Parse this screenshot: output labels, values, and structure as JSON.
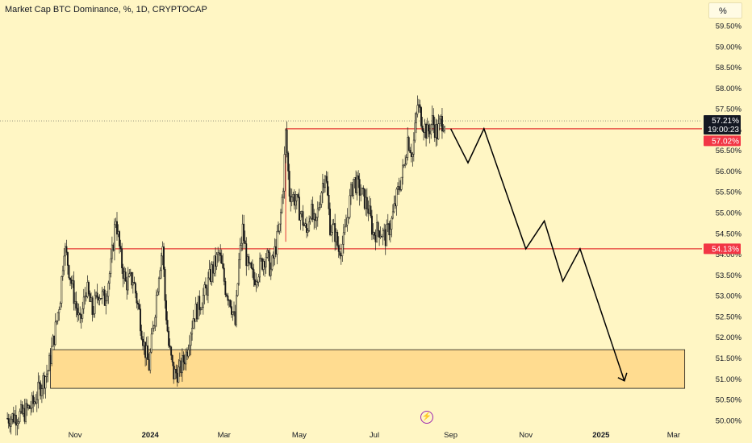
{
  "header": {
    "title": "Market Cap BTC Dominance, %, 1D, CRYPTOCAP",
    "unit_button": "%"
  },
  "colors": {
    "background": "#fff6c4",
    "candle": "#1a1a1a",
    "resistance": "#e53935",
    "zone_fill": "#ffd37f",
    "zone_border": "#1a1a1a",
    "current_label_bg": "#131722",
    "red_label_bg": "#f23645"
  },
  "labels": {
    "current_price": "57.21%",
    "countdown": "19:00:23",
    "upper_level": "57.02%",
    "lower_level": "54.13%"
  },
  "icons": {
    "bolt": "lightning-icon"
  },
  "chart_data": {
    "type": "candlestick",
    "title": "Market Cap BTC Dominance, %, 1D, CRYPTOCAP",
    "ylim": [
      49.88,
      60.12
    ],
    "y_ticks": [
      "50.00%",
      "50.50%",
      "51.00%",
      "51.50%",
      "52.00%",
      "52.50%",
      "53.00%",
      "53.50%",
      "54.00%",
      "54.50%",
      "55.00%",
      "55.50%",
      "56.00%",
      "56.50%",
      "57.00%",
      "57.50%",
      "58.00%",
      "58.50%",
      "59.00%",
      "59.50%"
    ],
    "y_tick_values": [
      50.0,
      50.5,
      51.0,
      51.5,
      52.0,
      52.5,
      53.0,
      53.5,
      54.0,
      54.5,
      55.0,
      55.5,
      56.0,
      56.5,
      57.0,
      57.5,
      58.0,
      58.5,
      59.0,
      59.5
    ],
    "x_ticks": [
      {
        "label": "Nov",
        "date": "2023-11-01",
        "bold": false
      },
      {
        "label": "2024",
        "date": "2024-01-01",
        "bold": true
      },
      {
        "label": "Mar",
        "date": "2024-03-01",
        "bold": false
      },
      {
        "label": "May",
        "date": "2024-05-01",
        "bold": false
      },
      {
        "label": "Jul",
        "date": "2024-07-01",
        "bold": false
      },
      {
        "label": "Sep",
        "date": "2024-09-01",
        "bold": false
      },
      {
        "label": "Nov",
        "date": "2024-11-01",
        "bold": false
      },
      {
        "label": "2025",
        "date": "2025-01-01",
        "bold": true
      },
      {
        "label": "Mar",
        "date": "2025-03-01",
        "bold": false
      }
    ],
    "price_path": [
      [
        "2023-09-07",
        50.05
      ],
      [
        "2023-09-20",
        50.15
      ],
      [
        "2023-09-28",
        50.4
      ],
      [
        "2023-10-05",
        50.9
      ],
      [
        "2023-10-10",
        51.2
      ],
      [
        "2023-10-16",
        52.2
      ],
      [
        "2023-10-20",
        53.0
      ],
      [
        "2023-10-23",
        54.2
      ],
      [
        "2023-10-26",
        53.8
      ],
      [
        "2023-10-31",
        53.0
      ],
      [
        "2023-11-05",
        52.3
      ],
      [
        "2023-11-10",
        53.2
      ],
      [
        "2023-11-15",
        52.6
      ],
      [
        "2023-11-20",
        53.1
      ],
      [
        "2023-11-25",
        52.9
      ],
      [
        "2023-11-30",
        53.7
      ],
      [
        "2023-12-04",
        54.9
      ],
      [
        "2023-12-08",
        53.9
      ],
      [
        "2023-12-12",
        53.3
      ],
      [
        "2023-12-18",
        53.4
      ],
      [
        "2023-12-23",
        52.6
      ],
      [
        "2023-12-27",
        51.8
      ],
      [
        "2023-12-31",
        51.3
      ],
      [
        "2024-01-04",
        52.4
      ],
      [
        "2024-01-08",
        53.6
      ],
      [
        "2024-01-11",
        54.2
      ],
      [
        "2024-01-13",
        52.9
      ],
      [
        "2024-01-16",
        51.8
      ],
      [
        "2024-01-20",
        51.1
      ],
      [
        "2024-01-25",
        51.2
      ],
      [
        "2024-01-30",
        51.6
      ],
      [
        "2024-02-05",
        52.5
      ],
      [
        "2024-02-10",
        52.8
      ],
      [
        "2024-02-15",
        53.1
      ],
      [
        "2024-02-20",
        53.6
      ],
      [
        "2024-02-26",
        54.0
      ],
      [
        "2024-03-02",
        53.2
      ],
      [
        "2024-03-06",
        52.9
      ],
      [
        "2024-03-10",
        52.3
      ],
      [
        "2024-03-13",
        53.8
      ],
      [
        "2024-03-16",
        54.6
      ],
      [
        "2024-03-20",
        53.7
      ],
      [
        "2024-03-25",
        53.4
      ],
      [
        "2024-03-30",
        53.7
      ],
      [
        "2024-04-04",
        54.0
      ],
      [
        "2024-04-08",
        53.6
      ],
      [
        "2024-04-12",
        54.2
      ],
      [
        "2024-04-15",
        54.6
      ],
      [
        "2024-04-18",
        55.7
      ],
      [
        "2024-04-20",
        56.9
      ],
      [
        "2024-04-23",
        55.5
      ],
      [
        "2024-04-28",
        55.3
      ],
      [
        "2024-05-03",
        54.9
      ],
      [
        "2024-05-07",
        54.5
      ],
      [
        "2024-05-10",
        55.1
      ],
      [
        "2024-05-14",
        54.6
      ],
      [
        "2024-05-18",
        55.4
      ],
      [
        "2024-05-22",
        56.0
      ],
      [
        "2024-05-26",
        54.7
      ],
      [
        "2024-05-30",
        54.5
      ],
      [
        "2024-06-02",
        54.1
      ],
      [
        "2024-06-06",
        54.3
      ],
      [
        "2024-06-10",
        55.1
      ],
      [
        "2024-06-14",
        55.8
      ],
      [
        "2024-06-18",
        55.6
      ],
      [
        "2024-06-23",
        55.3
      ],
      [
        "2024-06-26",
        55.1
      ],
      [
        "2024-06-30",
        54.5
      ],
      [
        "2024-07-05",
        54.6
      ],
      [
        "2024-07-10",
        54.4
      ],
      [
        "2024-07-15",
        54.8
      ],
      [
        "2024-07-20",
        55.5
      ],
      [
        "2024-07-25",
        56.1
      ],
      [
        "2024-07-28",
        56.8
      ],
      [
        "2024-08-01",
        56.4
      ],
      [
        "2024-08-05",
        57.6
      ],
      [
        "2024-08-09",
        57.2
      ],
      [
        "2024-08-13",
        56.9
      ],
      [
        "2024-08-17",
        57.2
      ],
      [
        "2024-08-21",
        56.9
      ],
      [
        "2024-08-24",
        57.2
      ],
      [
        "2024-08-27",
        57.21
      ]
    ],
    "current_value": 57.21,
    "levels": [
      {
        "name": "upper-resistance",
        "value": 57.02,
        "start": "2024-04-20"
      },
      {
        "name": "lower-resistance",
        "value": 54.13,
        "start": "2023-10-23"
      }
    ],
    "demand_zone": {
      "y_from": 50.77,
      "y_to": 51.7,
      "x_from": "2023-10-12",
      "x_to": "2025-03-10"
    },
    "projection_path": [
      [
        "2024-09-01",
        57.02
      ],
      [
        "2024-09-15",
        56.2
      ],
      [
        "2024-09-28",
        57.02
      ],
      [
        "2024-11-01",
        54.13
      ],
      [
        "2024-11-16",
        54.8
      ],
      [
        "2024-12-01",
        53.35
      ],
      [
        "2024-12-15",
        54.13
      ],
      [
        "2025-01-20",
        50.95
      ]
    ]
  }
}
